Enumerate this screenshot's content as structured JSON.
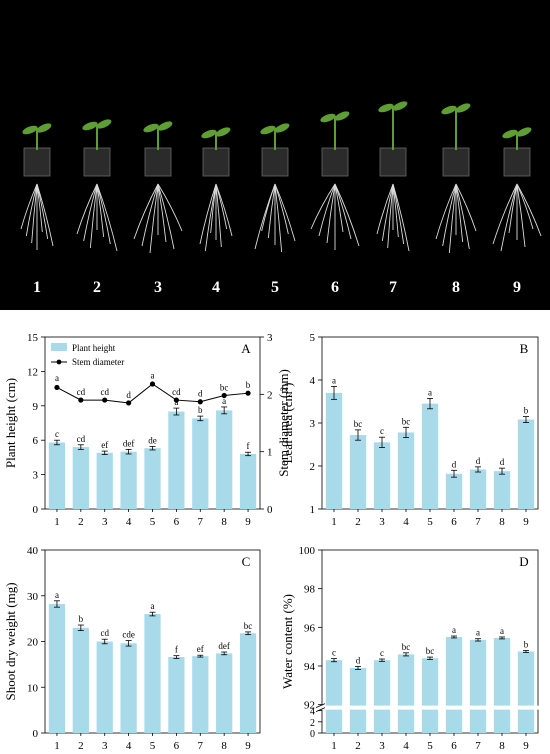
{
  "photo": {
    "labels": [
      "1",
      "2",
      "3",
      "4",
      "5",
      "6",
      "7",
      "8",
      "9"
    ],
    "background": "#000000",
    "plant_color": "#5e9e33",
    "root_color": "#dcdcdc"
  },
  "colors": {
    "bar": "#a8daea",
    "line": "#000000",
    "text": "#000000"
  },
  "chart_data": [
    {
      "type": "bar",
      "panel_label": "A",
      "categories": [
        "1",
        "2",
        "3",
        "4",
        "5",
        "6",
        "7",
        "8",
        "9"
      ],
      "series": [
        {
          "name": "Plant height",
          "type": "bar",
          "axis": "left",
          "values": [
            5.8,
            5.4,
            4.9,
            5.0,
            5.3,
            8.5,
            7.9,
            8.6,
            4.8
          ],
          "errors": [
            0.2,
            0.2,
            0.15,
            0.2,
            0.15,
            0.3,
            0.2,
            0.3,
            0.15
          ],
          "letters": [
            "c",
            "cd",
            "ef",
            "def",
            "de",
            "a",
            "b",
            "a",
            "f"
          ]
        },
        {
          "name": "Stem diameter",
          "type": "line",
          "axis": "right",
          "values": [
            2.12,
            1.9,
            1.9,
            1.85,
            2.18,
            1.9,
            1.87,
            1.98,
            2.02
          ],
          "errors": [
            0.04,
            0.02,
            0.02,
            0.02,
            0.03,
            0.02,
            0.02,
            0.02,
            0.02
          ],
          "letters": [
            "a",
            "cd",
            "cd",
            "d",
            "a",
            "cd",
            "d",
            "bc",
            "b"
          ]
        }
      ],
      "ylabel": "Plant height  (cm)",
      "y2label": "Stem diameter  (mm)",
      "ylim": [
        0,
        15
      ],
      "yticks": [
        "0",
        "3",
        "6",
        "9",
        "12",
        "15"
      ],
      "y2lim": [
        0,
        3
      ],
      "y2ticks": [
        "0",
        "1",
        "2",
        "3"
      ],
      "legend_position": "top-left"
    },
    {
      "type": "bar",
      "panel_label": "B",
      "categories": [
        "1",
        "2",
        "3",
        "4",
        "5",
        "6",
        "7",
        "8",
        "9"
      ],
      "values": [
        3.7,
        2.72,
        2.55,
        2.78,
        3.45,
        1.82,
        1.92,
        1.88,
        3.08
      ],
      "errors": [
        0.15,
        0.12,
        0.12,
        0.12,
        0.12,
        0.08,
        0.06,
        0.07,
        0.07
      ],
      "letters": [
        "a",
        "bc",
        "c",
        "bc",
        "a",
        "d",
        "d",
        "d",
        "b"
      ],
      "ylabel": "Leaf area (cm",
      "ylabel_sup": "2",
      "ylabel_end": ")",
      "ylim": [
        1,
        5
      ],
      "yticks": [
        "1",
        "2",
        "3",
        "4",
        "5"
      ]
    },
    {
      "type": "bar",
      "panel_label": "C",
      "categories": [
        "1",
        "2",
        "3",
        "4",
        "5",
        "6",
        "7",
        "8",
        "9"
      ],
      "values": [
        28.2,
        23.0,
        20.0,
        19.6,
        26.0,
        16.6,
        16.8,
        17.4,
        21.8
      ],
      "errors": [
        0.7,
        0.6,
        0.5,
        0.6,
        0.4,
        0.3,
        0.2,
        0.3,
        0.3
      ],
      "letters": [
        "a",
        "b",
        "cd",
        "cde",
        "a",
        "f",
        "ef",
        "def",
        "bc"
      ],
      "ylabel": "Shoot dry weight (mg)",
      "ylim": [
        0,
        40
      ],
      "yticks": [
        "0",
        "10",
        "20",
        "30",
        "40"
      ]
    },
    {
      "type": "bar",
      "panel_label": "D",
      "categories": [
        "1",
        "2",
        "3",
        "4",
        "5",
        "6",
        "7",
        "8",
        "9"
      ],
      "values": [
        94.3,
        93.9,
        94.3,
        94.6,
        94.4,
        95.5,
        95.35,
        95.45,
        94.75
      ],
      "errors": [
        0.08,
        0.08,
        0.06,
        0.08,
        0.06,
        0.05,
        0.06,
        0.05,
        0.05
      ],
      "letters": [
        "c",
        "d",
        "c",
        "bc",
        "bc",
        "a",
        "a",
        "a",
        "b"
      ],
      "ylabel": "Water content (%)",
      "ylim": [
        92,
        100
      ],
      "yticks": [
        "92",
        "94",
        "96",
        "98",
        "100"
      ],
      "lower_ticks": [
        "0",
        "2",
        "4"
      ],
      "axis_break": true
    }
  ]
}
